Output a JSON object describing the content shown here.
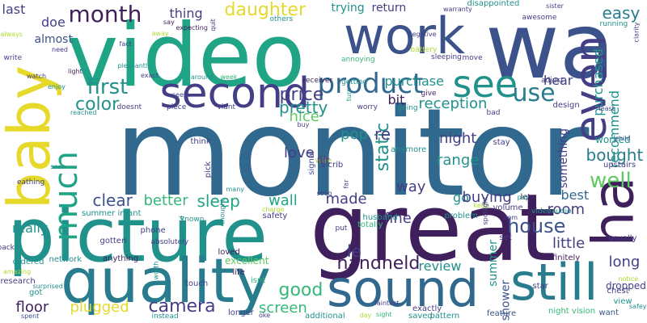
{
  "palette": {
    "dark_purple": "#3f1f5c",
    "indigo": "#433e85",
    "slate_blue": "#3b528b",
    "steel_blue": "#31688e",
    "teal_blue": "#287c8e",
    "teal": "#21918c",
    "sea_green": "#20a486",
    "green": "#35b779",
    "light_green": "#5ec962",
    "yellow_green": "#addc30",
    "yellow": "#e6d92a"
  },
  "words": [
    {
      "text": "monitor",
      "color": "steel_blue",
      "orientation": "horizontal"
    },
    {
      "text": "wa",
      "color": "slate_blue",
      "orientation": "horizontal"
    },
    {
      "text": "video",
      "color": "sea_green",
      "orientation": "horizontal"
    },
    {
      "text": "great",
      "color": "dark_purple",
      "orientation": "horizontal"
    },
    {
      "text": "picture",
      "color": "teal",
      "orientation": "horizontal"
    },
    {
      "text": "baby",
      "color": "yellow",
      "orientation": "vertical"
    },
    {
      "text": "quality",
      "color": "teal_blue",
      "orientation": "horizontal"
    },
    {
      "text": "sound",
      "color": "steel_blue",
      "orientation": "horizontal"
    },
    {
      "text": "still",
      "color": "teal_blue",
      "orientation": "horizontal"
    },
    {
      "text": "ha",
      "color": "dark_purple",
      "orientation": "vertical"
    },
    {
      "text": "work",
      "color": "slate_blue",
      "orientation": "horizontal"
    },
    {
      "text": "second",
      "color": "indigo",
      "orientation": "horizontal"
    },
    {
      "text": "see",
      "color": "teal",
      "orientation": "horizontal"
    },
    {
      "text": "even",
      "color": "indigo",
      "orientation": "vertical"
    },
    {
      "text": "much",
      "color": "sea_green",
      "orientation": "vertical"
    },
    {
      "text": "product",
      "color": "steel_blue",
      "orientation": "horizontal"
    },
    {
      "text": "month",
      "color": "dark_purple",
      "orientation": "horizontal"
    },
    {
      "text": "daughter",
      "color": "yellow",
      "orientation": "horizontal"
    },
    {
      "text": "use",
      "color": "teal_blue",
      "orientation": "horizontal"
    },
    {
      "text": "first",
      "color": "teal",
      "orientation": "horizontal"
    },
    {
      "text": "color",
      "color": "teal",
      "orientation": "horizontal"
    },
    {
      "text": "house",
      "color": "slate_blue",
      "orientation": "horizontal"
    },
    {
      "text": "handheld",
      "color": "dark_purple",
      "orientation": "horizontal"
    },
    {
      "text": "camera",
      "color": "indigo",
      "orientation": "horizontal"
    },
    {
      "text": "good",
      "color": "green",
      "orientation": "horizontal"
    },
    {
      "text": "well",
      "color": "light_green",
      "orientation": "horizontal"
    },
    {
      "text": "easy",
      "color": "teal_blue",
      "orientation": "horizontal"
    },
    {
      "text": "price",
      "color": "indigo",
      "orientation": "horizontal"
    },
    {
      "text": "pretty",
      "color": "teal",
      "orientation": "horizontal"
    },
    {
      "text": "made",
      "color": "indigo",
      "orientation": "horizontal"
    },
    {
      "text": "clear",
      "color": "slate_blue",
      "orientation": "horizontal"
    },
    {
      "text": "better",
      "color": "green",
      "orientation": "horizontal"
    },
    {
      "text": "sleep",
      "color": "sea_green",
      "orientation": "horizontal"
    },
    {
      "text": "wall",
      "color": "sea_green",
      "orientation": "horizontal"
    },
    {
      "text": "floor",
      "color": "dark_purple",
      "orientation": "horizontal"
    },
    {
      "text": "plugged",
      "color": "yellow",
      "orientation": "horizontal"
    },
    {
      "text": "screen",
      "color": "green",
      "orientation": "horizontal"
    },
    {
      "text": "bought",
      "color": "teal_blue",
      "orientation": "horizontal"
    },
    {
      "text": "room",
      "color": "indigo",
      "orientation": "horizontal"
    },
    {
      "text": "little",
      "color": "indigo",
      "orientation": "horizontal"
    },
    {
      "text": "best",
      "color": "steel_blue",
      "orientation": "horizontal"
    },
    {
      "text": "long",
      "color": "indigo",
      "orientation": "horizontal"
    },
    {
      "text": "purchased",
      "color": "teal",
      "orientation": "vertical"
    },
    {
      "text": "recommend",
      "color": "teal",
      "orientation": "vertical"
    },
    {
      "text": "reception",
      "color": "teal",
      "orientation": "horizontal"
    },
    {
      "text": "purchase",
      "color": "teal",
      "orientation": "horizontal"
    },
    {
      "text": "hear",
      "color": "indigo",
      "orientation": "horizontal"
    },
    {
      "text": "bit",
      "color": "dark_purple",
      "orientation": "horizontal"
    },
    {
      "text": "static",
      "color": "teal",
      "orientation": "vertical"
    },
    {
      "text": "night",
      "color": "indigo",
      "orientation": "horizontal"
    },
    {
      "text": "range",
      "color": "teal",
      "orientation": "horizontal"
    },
    {
      "text": "nice",
      "color": "light_green",
      "orientation": "horizontal"
    },
    {
      "text": "love",
      "color": "indigo",
      "orientation": "horizontal"
    },
    {
      "text": "pop",
      "color": "teal",
      "orientation": "horizontal"
    },
    {
      "text": "way",
      "color": "indigo",
      "orientation": "horizontal"
    },
    {
      "text": "fine",
      "color": "indigo",
      "orientation": "horizontal"
    },
    {
      "text": "go",
      "color": "teal",
      "orientation": "horizontal"
    },
    {
      "text": "buying",
      "color": "indigo",
      "orientation": "horizontal"
    },
    {
      "text": "le",
      "color": "indigo",
      "orientation": "horizontal"
    },
    {
      "text": "re",
      "color": "indigo",
      "orientation": "horizontal"
    },
    {
      "text": "really",
      "color": "teal",
      "orientation": "horizontal"
    },
    {
      "text": "review",
      "color": "teal",
      "orientation": "horizontal"
    },
    {
      "text": "summer",
      "color": "teal",
      "orientation": "vertical"
    },
    {
      "text": "shower",
      "color": "slate_blue",
      "orientation": "vertical"
    },
    {
      "text": "something",
      "color": "indigo",
      "orientation": "vertical"
    },
    {
      "text": "last",
      "color": "indigo",
      "orientation": "horizontal"
    },
    {
      "text": "doe",
      "color": "indigo",
      "orientation": "horizontal"
    },
    {
      "text": "almost",
      "color": "slate_blue",
      "orientation": "horizontal"
    },
    {
      "text": "thing",
      "color": "indigo",
      "orientation": "horizontal"
    },
    {
      "text": "trying",
      "color": "teal",
      "orientation": "horizontal"
    },
    {
      "text": "return",
      "color": "indigo",
      "orientation": "horizontal"
    },
    {
      "text": "dropped",
      "color": "indigo",
      "orientation": "horizontal"
    },
    {
      "text": "excellent",
      "color": "light_green",
      "orientation": "horizontal"
    },
    {
      "text": "worked",
      "color": "teal",
      "orientation": "horizontal"
    },
    {
      "text": "definitely",
      "color": "dark_purple",
      "orientation": "horizontal"
    },
    {
      "text": "disappointed",
      "color": "teal",
      "orientation": "horizontal"
    },
    {
      "text": "upstairs",
      "color": "indigo",
      "orientation": "horizontal"
    },
    {
      "text": "design",
      "color": "indigo",
      "orientation": "horizontal"
    },
    {
      "text": "loved",
      "color": "dark_purple",
      "orientation": "horizontal"
    },
    {
      "text": "anymore",
      "color": "teal",
      "orientation": "horizontal"
    },
    {
      "text": "signal",
      "color": "slate_blue",
      "orientation": "vertical"
    },
    {
      "text": "husband",
      "color": "teal",
      "orientation": "horizontal"
    },
    {
      "text": "crib",
      "color": "indigo",
      "orientation": "horizontal"
    },
    {
      "text": "think",
      "color": "indigo",
      "orientation": "horizontal"
    },
    {
      "text": "pick",
      "color": "indigo",
      "orientation": "vertical"
    },
    {
      "text": "problem",
      "color": "teal",
      "orientation": "horizontal"
    },
    {
      "text": "volume",
      "color": "indigo",
      "orientation": "horizontal"
    },
    {
      "text": "exactly",
      "color": "indigo",
      "orientation": "horizontal"
    },
    {
      "text": "totally",
      "color": "green",
      "orientation": "horizontal"
    },
    {
      "text": "star",
      "color": "indigo",
      "orientation": "horizontal"
    },
    {
      "text": "network",
      "color": "teal",
      "orientation": "horizontal"
    },
    {
      "text": "anything",
      "color": "dark_purple",
      "orientation": "horizontal"
    },
    {
      "text": "feature",
      "color": "slate_blue",
      "orientation": "horizontal"
    },
    {
      "text": "additional",
      "color": "teal",
      "orientation": "horizontal"
    },
    {
      "text": "longer",
      "color": "indigo",
      "orientation": "horizontal"
    },
    {
      "text": "instead",
      "color": "teal",
      "orientation": "horizontal"
    },
    {
      "text": "ordered",
      "color": "teal",
      "orientation": "horizontal"
    },
    {
      "text": "research",
      "color": "indigo",
      "orientation": "horizontal"
    },
    {
      "text": "got",
      "color": "teal",
      "orientation": "horizontal"
    },
    {
      "text": "stay",
      "color": "indigo",
      "orientation": "horizontal"
    },
    {
      "text": "let",
      "color": "dark_purple",
      "orientation": "horizontal"
    },
    {
      "text": "phone",
      "color": "indigo",
      "orientation": "horizontal"
    },
    {
      "text": "gotten",
      "color": "indigo",
      "orientation": "horizontal"
    },
    {
      "text": "night vision",
      "color": "green",
      "orientation": "horizontal"
    },
    {
      "text": "want",
      "color": "slate_blue",
      "orientation": "horizontal"
    },
    {
      "text": "chest",
      "color": "indigo",
      "orientation": "horizontal"
    },
    {
      "text": "view",
      "color": "teal",
      "orientation": "horizontal"
    },
    {
      "text": "usually",
      "color": "indigo",
      "orientation": "horizontal"
    },
    {
      "text": "videoaudio",
      "color": "teal",
      "orientation": "horizontal"
    },
    {
      "text": "absolutely",
      "color": "indigo",
      "orientation": "horizontal"
    },
    {
      "text": "summer infant",
      "color": "teal",
      "orientation": "horizontal"
    },
    {
      "text": "safety",
      "color": "indigo",
      "orientation": "horizontal"
    },
    {
      "text": "put",
      "color": "indigo",
      "orientation": "horizontal"
    },
    {
      "text": "set",
      "color": "indigo",
      "orientation": "horizontal"
    },
    {
      "text": "life",
      "color": "dark_purple",
      "orientation": "horizontal"
    },
    {
      "text": "isnt",
      "color": "green",
      "orientation": "horizontal"
    },
    {
      "text": "touch",
      "color": "indigo",
      "orientation": "horizontal"
    },
    {
      "text": "saved",
      "color": "teal",
      "orientation": "horizontal"
    },
    {
      "text": "pattern",
      "color": "teal",
      "orientation": "horizontal"
    },
    {
      "text": "worry",
      "color": "indigo",
      "orientation": "horizontal"
    },
    {
      "text": "going",
      "color": "teal",
      "orientation": "horizontal"
    },
    {
      "text": "give",
      "color": "dark_purple",
      "orientation": "horizontal"
    },
    {
      "text": "bad",
      "color": "indigo",
      "orientation": "horizontal"
    },
    {
      "text": "getting",
      "color": "teal",
      "orientation": "horizontal"
    },
    {
      "text": "adjust",
      "color": "indigo",
      "orientation": "horizontal"
    },
    {
      "text": "doesnt",
      "color": "indigo",
      "orientation": "horizontal"
    },
    {
      "text": "piece",
      "color": "indigo",
      "orientation": "horizontal"
    },
    {
      "text": "viant",
      "color": "indigo",
      "orientation": "horizontal"
    },
    {
      "text": "annoying",
      "color": "green",
      "orientation": "horizontal"
    },
    {
      "text": "battery",
      "color": "yellow_green",
      "orientation": "horizontal"
    },
    {
      "text": "sleeping",
      "color": "indigo",
      "orientation": "horizontal"
    },
    {
      "text": "move",
      "color": "indigo",
      "orientation": "horizontal"
    },
    {
      "text": "awesome",
      "color": "indigo",
      "orientation": "horizontal"
    },
    {
      "text": "running",
      "color": "teal",
      "orientation": "horizontal"
    },
    {
      "text": "sister",
      "color": "indigo",
      "orientation": "horizontal"
    },
    {
      "text": "warranty",
      "color": "indigo",
      "orientation": "horizontal"
    },
    {
      "text": "negative",
      "color": "indigo",
      "orientation": "horizontal"
    },
    {
      "text": "others",
      "color": "teal",
      "orientation": "horizontal"
    },
    {
      "text": "week",
      "color": "green",
      "orientation": "horizontal"
    },
    {
      "text": "around",
      "color": "teal",
      "orientation": "horizontal"
    },
    {
      "text": "exact",
      "color": "indigo",
      "orientation": "horizontal"
    },
    {
      "text": "pleasantly",
      "color": "teal",
      "orientation": "horizontal"
    },
    {
      "text": "expecting",
      "color": "dark_purple",
      "orientation": "horizontal"
    },
    {
      "text": "seem",
      "color": "indigo",
      "orientation": "horizontal"
    },
    {
      "text": "say",
      "color": "dark_purple",
      "orientation": "horizontal"
    },
    {
      "text": "fact",
      "color": "indigo",
      "orientation": "horizontal"
    },
    {
      "text": "need",
      "color": "indigo",
      "orientation": "horizontal"
    },
    {
      "text": "always",
      "color": "yellow_green",
      "orientation": "horizontal"
    },
    {
      "text": "write",
      "color": "indigo",
      "orientation": "horizontal"
    },
    {
      "text": "watch",
      "color": "indigo",
      "orientation": "horizontal"
    },
    {
      "text": "enjoy",
      "color": "teal",
      "orientation": "horizontal"
    },
    {
      "text": "light",
      "color": "dark_purple",
      "orientation": "horizontal"
    },
    {
      "text": "eathing",
      "color": "indigo",
      "orientation": "horizontal"
    },
    {
      "text": "pack",
      "color": "indigo",
      "orientation": "horizontal"
    },
    {
      "text": "known",
      "color": "teal",
      "orientation": "horizontal"
    },
    {
      "text": "receiver",
      "color": "dark_purple",
      "orientation": "horizontal"
    },
    {
      "text": "turn",
      "color": "teal",
      "orientation": "vertical"
    },
    {
      "text": "buy",
      "color": "indigo",
      "orientation": "horizontal"
    },
    {
      "text": "keep",
      "color": "yellow_green",
      "orientation": "horizontal"
    },
    {
      "text": "pay",
      "color": "teal",
      "orientation": "horizontal"
    },
    {
      "text": "child",
      "color": "slate_blue",
      "orientation": "horizontal"
    },
    {
      "text": "least",
      "color": "indigo",
      "orientation": "horizontal"
    },
    {
      "text": "charge",
      "color": "yellow_green",
      "orientation": "horizontal"
    },
    {
      "text": "thought",
      "color": "teal",
      "orientation": "vertical"
    },
    {
      "text": "worth",
      "color": "teal",
      "orientation": "vertical"
    },
    {
      "text": "amazing",
      "color": "yellow_green",
      "orientation": "horizontal"
    },
    {
      "text": "surprised",
      "color": "teal",
      "orientation": "horizontal"
    },
    {
      "text": "spent",
      "color": "slate_blue",
      "orientation": "horizontal"
    },
    {
      "text": "oke",
      "color": "indigo",
      "orientation": "horizontal"
    },
    {
      "text": "day",
      "color": "yellow_green",
      "orientation": "horizontal"
    },
    {
      "text": "sight",
      "color": "green",
      "orientation": "horizontal"
    },
    {
      "text": "faintest",
      "color": "indigo",
      "orientation": "horizontal"
    },
    {
      "text": "notice",
      "color": "yellow_green",
      "orientation": "horizontal"
    },
    {
      "text": "safey",
      "color": "teal",
      "orientation": "horizontal"
    },
    {
      "text": "soon",
      "color": "teal",
      "orientation": "horizontal"
    },
    {
      "text": "reached",
      "color": "teal",
      "orientation": "horizontal"
    },
    {
      "text": "away",
      "color": "yellow_green",
      "orientation": "horizontal"
    },
    {
      "text": "quit",
      "color": "indigo",
      "orientation": "vertical"
    },
    {
      "text": "told",
      "color": "teal",
      "orientation": "vertical"
    },
    {
      "text": "many",
      "color": "teal",
      "orientation": "horizontal"
    },
    {
      "text": "far",
      "color": "indigo",
      "orientation": "vertical"
    },
    {
      "text": "sooo",
      "color": "indigo",
      "orientation": "horizontal"
    },
    {
      "text": "item",
      "color": "indigo",
      "orientation": "horizontal"
    },
    {
      "text": "spotlight",
      "color": "indigo",
      "orientation": "vertical"
    },
    {
      "text": "clarity",
      "color": "indigo",
      "orientation": "vertical"
    },
    {
      "text": "kid",
      "color": "indigo",
      "orientation": "vertical"
    },
    {
      "text": "wife",
      "color": "yellow_green",
      "orientation": "horizontal"
    },
    {
      "text": "felt",
      "color": "indigo",
      "orientation": "horizontal"
    },
    {
      "text": "aft",
      "color": "indigo",
      "orientation": "horizontal"
    }
  ]
}
